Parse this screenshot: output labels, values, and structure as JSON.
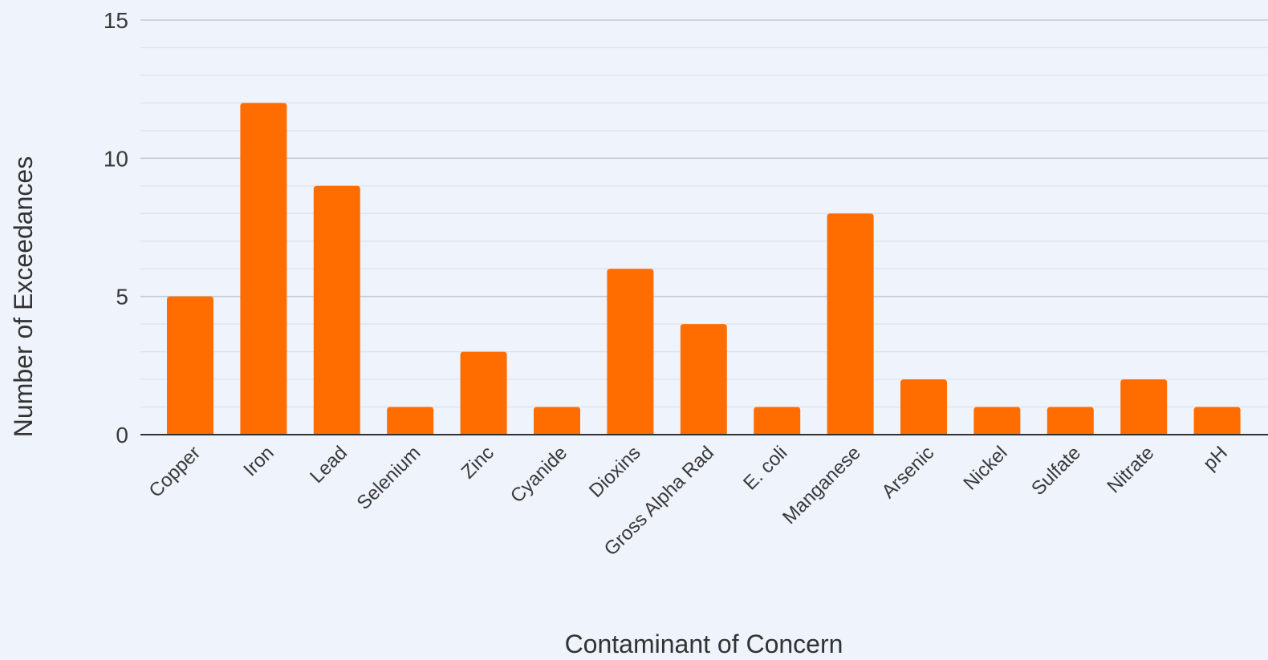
{
  "colors": {
    "background": "#eef3fc",
    "bar": "#ff6d01",
    "major_grid": "#c6cad2",
    "minor_grid": "#dde1e8",
    "baseline": "#333333"
  },
  "chart_data": {
    "type": "bar",
    "categories": [
      "Copper",
      "Iron",
      "Lead",
      "Selenium",
      "Zinc",
      "Cyanide",
      "Dioxins",
      "Gross Alpha Rad",
      "E. coli",
      "Manganese",
      "Arsenic",
      "Nickel",
      "Sulfate",
      "Nitrate",
      "pH"
    ],
    "values": [
      5,
      12,
      9,
      1,
      3,
      1,
      6,
      4,
      1,
      8,
      2,
      1,
      1,
      2,
      1
    ],
    "title": "",
    "xlabel": "Contaminant of Concern",
    "ylabel": "Number of Exceedances",
    "ylim": [
      0,
      15
    ],
    "yticks": [
      0,
      5,
      10,
      15
    ],
    "y_tick_labels": [
      "0",
      "5",
      "10",
      "15"
    ],
    "minor_grid_step": 1,
    "grid": true,
    "legend": "none"
  }
}
